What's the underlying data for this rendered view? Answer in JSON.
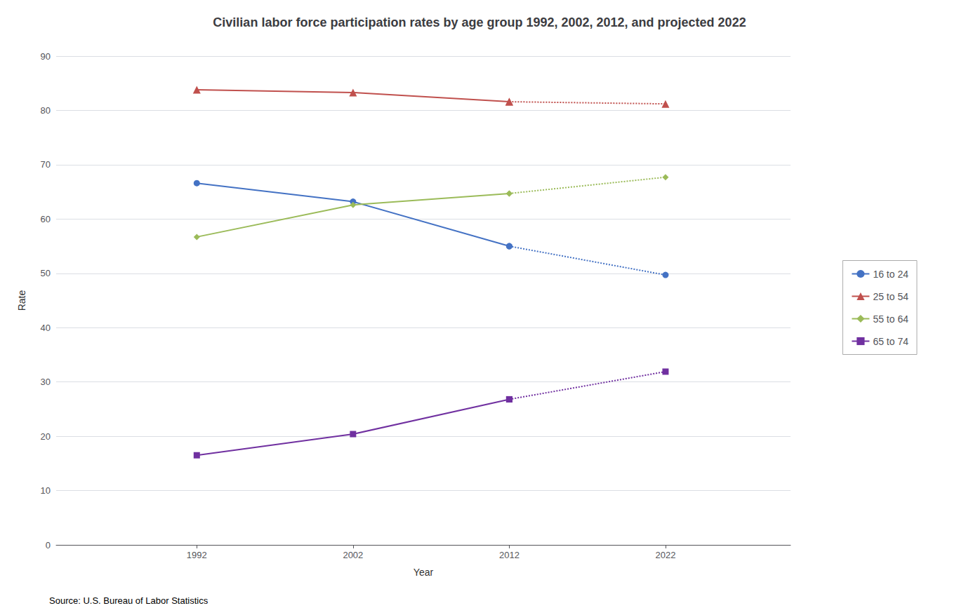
{
  "chart_data": {
    "type": "line",
    "title": "Civilian labor force participation rates by age group 1992, 2002, 2012, and projected 2022",
    "xlabel": "Year",
    "ylabel": "Rate",
    "x": [
      1992,
      2002,
      2012,
      2022
    ],
    "series": [
      {
        "name": "16 to 24",
        "color": "#4472C4",
        "marker": "circle",
        "line_style": [
          "solid",
          "solid",
          "dotted"
        ],
        "values": [
          66.6,
          63.2,
          55.0,
          49.7
        ]
      },
      {
        "name": "25 to 54",
        "color": "#C0504D",
        "marker": "triangle",
        "line_style": [
          "solid",
          "solid",
          "dotted"
        ],
        "values": [
          83.8,
          83.3,
          81.6,
          81.2
        ]
      },
      {
        "name": "55 to 64",
        "color": "#9BBB59",
        "marker": "diamond",
        "line_style": [
          "solid",
          "solid",
          "dotted"
        ],
        "values": [
          56.7,
          62.6,
          64.7,
          67.7
        ]
      },
      {
        "name": "65 to 74",
        "color": "#7030A0",
        "marker": "square",
        "line_style": [
          "solid",
          "solid",
          "dotted"
        ],
        "values": [
          16.5,
          20.4,
          26.8,
          31.9
        ]
      }
    ],
    "xlim": [
      1983,
      2030
    ],
    "xticks": [
      1992,
      2002,
      2012,
      2022
    ],
    "ylim": [
      0,
      90
    ],
    "yticks": [
      0,
      10,
      20,
      30,
      40,
      50,
      60,
      70,
      80,
      90
    ],
    "grid": true,
    "legend": "right",
    "annotations": [
      "Source: U.S. Bureau of Labor Statistics"
    ]
  }
}
